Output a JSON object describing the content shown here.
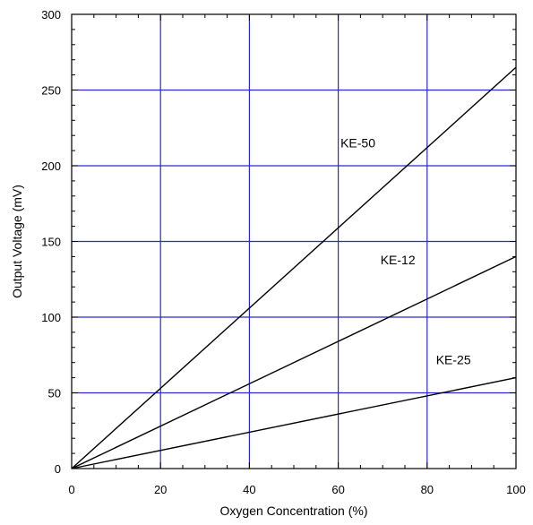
{
  "chart_data": {
    "type": "line",
    "title": "",
    "xlabel": "Oxygen Concentration (%)",
    "ylabel": "Output Voltage (mV)",
    "xlim": [
      0,
      100
    ],
    "ylim": [
      0,
      300
    ],
    "x_ticks": [
      0,
      20,
      40,
      60,
      80,
      100
    ],
    "y_ticks": [
      0,
      50,
      100,
      150,
      200,
      250,
      300
    ],
    "x_tick_labels": [
      "0",
      "20",
      "40",
      "60",
      "80",
      "100"
    ],
    "y_tick_labels": [
      "0",
      "50",
      "100",
      "150",
      "200",
      "250",
      "300"
    ],
    "grid": true,
    "grid_color": "#2a2ad0",
    "line_color": "#000000",
    "series": [
      {
        "name": "KE-50",
        "x": [
          0,
          100
        ],
        "y": [
          0,
          265
        ]
      },
      {
        "name": "KE-12",
        "x": [
          0,
          100
        ],
        "y": [
          0,
          140
        ]
      },
      {
        "name": "KE-25",
        "x": [
          0,
          100
        ],
        "y": [
          0,
          60
        ]
      }
    ]
  }
}
